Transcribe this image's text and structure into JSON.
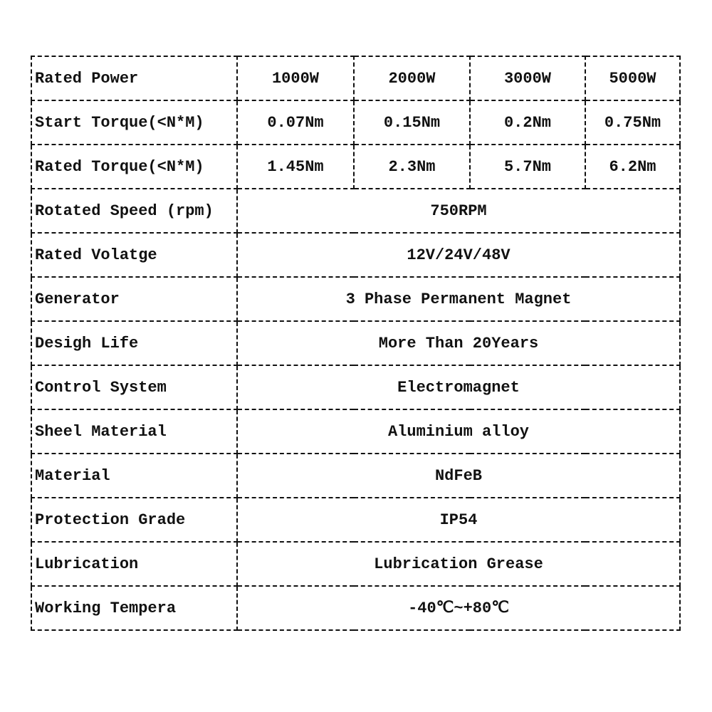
{
  "table": {
    "rows": [
      [
        "Rated Power",
        "1000W",
        "2000W",
        "3000W",
        "5000W"
      ],
      [
        "Start Torque(<N*M)",
        "0.07Nm",
        "0.15Nm",
        "0.2Nm",
        "0.75Nm"
      ],
      [
        "Rated Torque(<N*M)",
        "1.45Nm",
        "2.3Nm",
        "5.7Nm",
        "6.2Nm"
      ],
      [
        "Rotated Speed (rpm)",
        "750RPM"
      ],
      [
        "Rated Volatge",
        "12V/24V/48V"
      ],
      [
        "Generator",
        "3 Phase Permanent Magnet"
      ],
      [
        "Desigh Life",
        "More Than 20Years"
      ],
      [
        "Control System",
        "Electromagnet"
      ],
      [
        "Sheel Material",
        "Aluminium alloy"
      ],
      [
        "Material",
        "NdFeB"
      ],
      [
        "Protection Grade",
        "IP54"
      ],
      [
        "Lubrication",
        "Lubrication Grease"
      ],
      [
        "Working Tempera",
        "-40℃~+80℃"
      ]
    ]
  }
}
